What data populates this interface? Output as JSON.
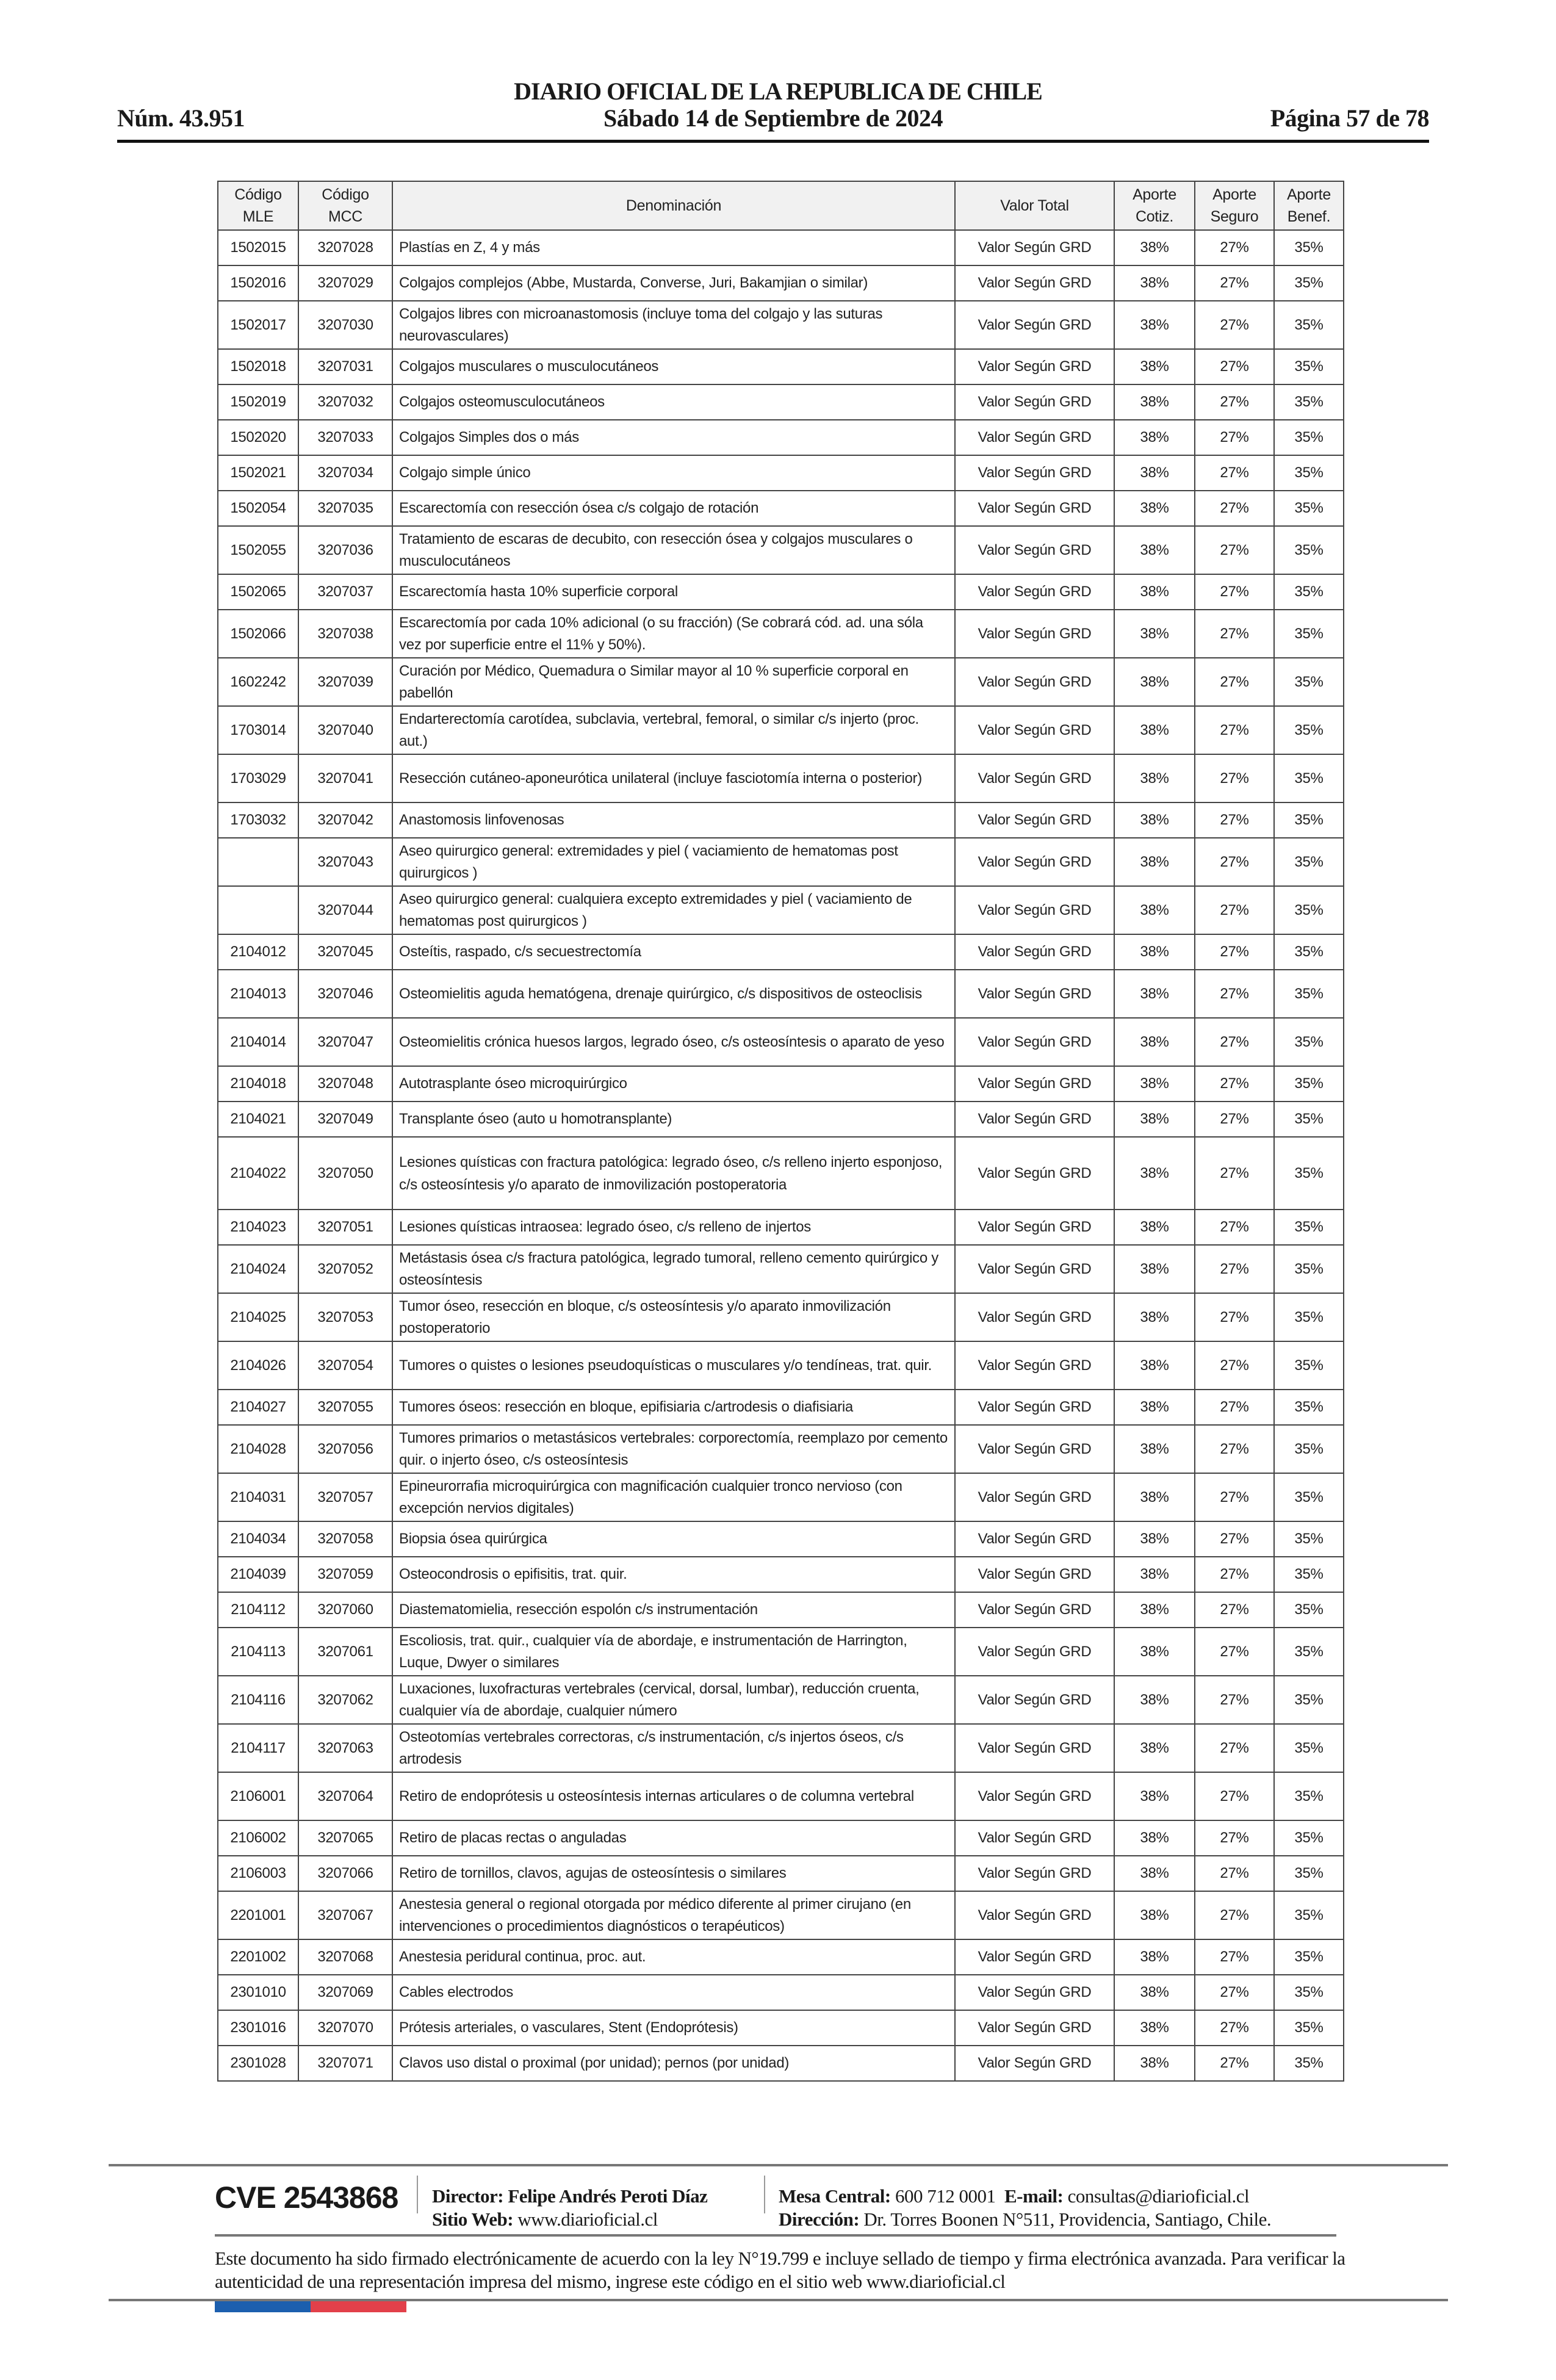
{
  "header": {
    "title": "DIARIO OFICIAL DE LA REPUBLICA DE CHILE",
    "number": "Núm. 43.951",
    "date": "Sábado 14 de Septiembre de 2024",
    "page": "Página 57 de 78"
  },
  "table": {
    "columns": [
      "Código MLE",
      "Código MCC",
      "Denominación",
      "Valor Total",
      "Aporte Cotiz.",
      "Aporte Seguro",
      "Aporte Benef."
    ],
    "rows": [
      [
        "1502015",
        "3207028",
        "Plastías en Z, 4 y más",
        "Valor Según GRD",
        "38%",
        "27%",
        "35%"
      ],
      [
        "1502016",
        "3207029",
        "Colgajos complejos (Abbe, Mustarda, Converse, Juri, Bakamjian o similar)",
        "Valor Según GRD",
        "38%",
        "27%",
        "35%"
      ],
      [
        "1502017",
        "3207030",
        "Colgajos libres con microanastomosis (incluye toma del colgajo y las suturas neurovasculares)",
        "Valor Según GRD",
        "38%",
        "27%",
        "35%"
      ],
      [
        "1502018",
        "3207031",
        "Colgajos musculares o musculocutáneos",
        "Valor Según GRD",
        "38%",
        "27%",
        "35%"
      ],
      [
        "1502019",
        "3207032",
        "Colgajos osteomusculocutáneos",
        "Valor Según GRD",
        "38%",
        "27%",
        "35%"
      ],
      [
        "1502020",
        "3207033",
        "Colgajos Simples dos o más",
        "Valor Según GRD",
        "38%",
        "27%",
        "35%"
      ],
      [
        "1502021",
        "3207034",
        "Colgajo simple único",
        "Valor Según GRD",
        "38%",
        "27%",
        "35%"
      ],
      [
        "1502054",
        "3207035",
        "Escarectomía con resección ósea c/s colgajo de rotación",
        "Valor Según GRD",
        "38%",
        "27%",
        "35%"
      ],
      [
        "1502055",
        "3207036",
        "Tratamiento de escaras de decubito, con resección ósea y colgajos musculares o musculocutáneos",
        "Valor Según GRD",
        "38%",
        "27%",
        "35%"
      ],
      [
        "1502065",
        "3207037",
        "Escarectomía  hasta 10% superficie corporal",
        "Valor Según GRD",
        "38%",
        "27%",
        "35%"
      ],
      [
        "1502066",
        "3207038",
        "Escarectomía por cada 10% adicional (o su fracción) (Se cobrará cód. ad. una sóla vez por superficie entre el 11% y 50%).",
        "Valor Según GRD",
        "38%",
        "27%",
        "35%"
      ],
      [
        "1602242",
        "3207039",
        "Curación por Médico, Quemadura o Similar mayor al 10 %  superficie corporal en pabellón",
        "Valor Según GRD",
        "38%",
        "27%",
        "35%"
      ],
      [
        "1703014",
        "3207040",
        "Endarterectomía carotídea, subclavia, vertebral, femoral, o similar  c/s injerto (proc. aut.)",
        "Valor Según GRD",
        "38%",
        "27%",
        "35%"
      ],
      [
        "1703029",
        "3207041",
        "Resección cutáneo-aponeurótica unilateral (incluye fasciotomía interna o posterior)",
        "Valor Según GRD",
        "38%",
        "27%",
        "35%"
      ],
      [
        "1703032",
        "3207042",
        "Anastomosis linfovenosas",
        "Valor Según GRD",
        "38%",
        "27%",
        "35%"
      ],
      [
        "",
        "3207043",
        "Aseo quirurgico general: extremidades  y  piel ( vaciamiento de hematomas post quirurgicos )",
        "Valor Según GRD",
        "38%",
        "27%",
        "35%"
      ],
      [
        "",
        "3207044",
        "Aseo quirurgico general: cualquiera excepto extremidades y piel ( vaciamiento de hematomas post quirurgicos )",
        "Valor Según GRD",
        "38%",
        "27%",
        "35%"
      ],
      [
        "2104012",
        "3207045",
        "Osteítis, raspado, c/s secuestrectomía",
        "Valor Según GRD",
        "38%",
        "27%",
        "35%"
      ],
      [
        "2104013",
        "3207046",
        "Osteomielitis aguda hematógena, drenaje quirúrgico, c/s dispositivos de osteoclisis",
        "Valor Según GRD",
        "38%",
        "27%",
        "35%"
      ],
      [
        "2104014",
        "3207047",
        "Osteomielitis crónica huesos largos, legrado óseo,  c/s osteosíntesis o aparato de yeso",
        "Valor Según GRD",
        "38%",
        "27%",
        "35%"
      ],
      [
        "2104018",
        "3207048",
        "Autotrasplante óseo microquirúrgico",
        "Valor Según GRD",
        "38%",
        "27%",
        "35%"
      ],
      [
        "2104021",
        "3207049",
        "Transplante óseo  (auto u homotransplante)",
        "Valor Según GRD",
        "38%",
        "27%",
        "35%"
      ],
      [
        "2104022",
        "3207050",
        "Lesiones quísticas con fractura patológica: legrado óseo, c/s relleno injerto esponjoso, c/s osteosíntesis y/o aparato de inmovilización postoperatoria",
        "Valor Según GRD",
        "38%",
        "27%",
        "35%"
      ],
      [
        "2104023",
        "3207051",
        "Lesiones quísticas intraosea: legrado óseo, c/s relleno de injertos",
        "Valor Según GRD",
        "38%",
        "27%",
        "35%"
      ],
      [
        "2104024",
        "3207052",
        "Metástasis ósea c/s fractura patológica, legrado tumoral, relleno cemento quirúrgico y osteosíntesis",
        "Valor Según GRD",
        "38%",
        "27%",
        "35%"
      ],
      [
        "2104025",
        "3207053",
        "Tumor óseo, resección en bloque, c/s osteosíntesis y/o aparato inmovilización postoperatorio",
        "Valor Según GRD",
        "38%",
        "27%",
        "35%"
      ],
      [
        "2104026",
        "3207054",
        "Tumores o quistes o lesiones pseudoquísticas o musculares y/o tendíneas, trat. quir.",
        "Valor Según GRD",
        "38%",
        "27%",
        "35%"
      ],
      [
        "2104027",
        "3207055",
        "Tumores óseos: resección en bloque, epifisiaria c/artrodesis o diafisiaria",
        "Valor Según GRD",
        "38%",
        "27%",
        "35%"
      ],
      [
        "2104028",
        "3207056",
        "Tumores primarios o metastásicos vertebrales: corporectomía, reemplazo por cemento quir. o injerto óseo, c/s osteosíntesis",
        "Valor Según GRD",
        "38%",
        "27%",
        "35%"
      ],
      [
        "2104031",
        "3207057",
        "Epineurorrafia microquirúrgica con magnificación cualquier tronco nervioso (con excepción nervios digitales)",
        "Valor Según GRD",
        "38%",
        "27%",
        "35%"
      ],
      [
        "2104034",
        "3207058",
        "Biopsia ósea quirúrgica",
        "Valor Según GRD",
        "38%",
        "27%",
        "35%"
      ],
      [
        "2104039",
        "3207059",
        "Osteocondrosis o epifisitis, trat. quir.",
        "Valor Según GRD",
        "38%",
        "27%",
        "35%"
      ],
      [
        "2104112",
        "3207060",
        "Diastematomielia, resección espolón c/s instrumentación",
        "Valor Según GRD",
        "38%",
        "27%",
        "35%"
      ],
      [
        "2104113",
        "3207061",
        "Escoliosis, trat. quir., cualquier vía de abordaje, e instrumentación de Harrington,  Luque,  Dwyer o similares",
        "Valor Según GRD",
        "38%",
        "27%",
        "35%"
      ],
      [
        "2104116",
        "3207062",
        "Luxaciones, luxofracturas vertebrales (cervical, dorsal, lumbar), reducción cruenta, cualquier vía de abordaje, cualquier número",
        "Valor Según GRD",
        "38%",
        "27%",
        "35%"
      ],
      [
        "2104117",
        "3207063",
        "Osteotomías vertebrales correctoras, c/s instrumentación, c/s injertos óseos, c/s artrodesis",
        "Valor Según GRD",
        "38%",
        "27%",
        "35%"
      ],
      [
        "2106001",
        "3207064",
        "Retiro de endoprótesis u osteosíntesis internas articulares o de columna vertebral",
        "Valor Según GRD",
        "38%",
        "27%",
        "35%"
      ],
      [
        "2106002",
        "3207065",
        "Retiro de placas rectas o anguladas",
        "Valor Según GRD",
        "38%",
        "27%",
        "35%"
      ],
      [
        "2106003",
        "3207066",
        "Retiro de tornillos, clavos, agujas de osteosíntesis o similares",
        "Valor Según GRD",
        "38%",
        "27%",
        "35%"
      ],
      [
        "2201001",
        "3207067",
        "Anestesia general o regional otorgada por médico diferente al primer cirujano (en intervenciones o procedimientos diagnósticos o terapéuticos)",
        "Valor Según GRD",
        "38%",
        "27%",
        "35%"
      ],
      [
        "2201002",
        "3207068",
        "Anestesia peridural continua, proc. aut.",
        "Valor Según GRD",
        "38%",
        "27%",
        "35%"
      ],
      [
        "2301010",
        "3207069",
        "Cables electrodos",
        "Valor Según GRD",
        "38%",
        "27%",
        "35%"
      ],
      [
        "2301016",
        "3207070",
        "Prótesis arteriales, o vasculares, Stent (Endoprótesis)",
        "Valor Según GRD",
        "38%",
        "27%",
        "35%"
      ],
      [
        "2301028",
        "3207071",
        "Clavos uso distal o proximal (por unidad); pernos (por unidad)",
        "Valor Según GRD",
        "38%",
        "27%",
        "35%"
      ]
    ]
  },
  "footer": {
    "cve": "CVE 2543868",
    "director_label": "Director:",
    "director": "Felipe Andrés Peroti Díaz",
    "site_label": "Sitio Web:",
    "site": "www.diarioficial.cl",
    "phone_label": "Mesa Central:",
    "phone": "600 712 0001",
    "email_label": "E-mail:",
    "email": "consultas@diarioficial.cl",
    "address_label": "Dirección:",
    "address": "Dr. Torres Boonen N°511, Providencia, Santiago, Chile.",
    "legal": "Este documento ha sido firmado electrónicamente de acuerdo con la ley N°19.799 e incluye sellado de tiempo y firma electrónica avanzada. Para verificar la autenticidad de una representación impresa del mismo, ingrese este código en el sitio web www.diarioficial.cl",
    "flag_colors": [
      "#1c5fae",
      "#e2404a"
    ]
  }
}
